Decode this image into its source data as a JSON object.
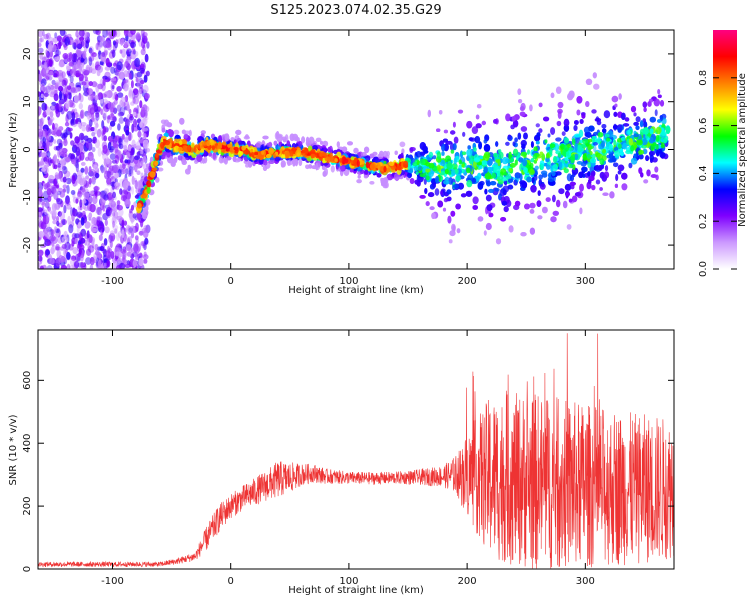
{
  "title": "S125.2023.074.02.35.G29",
  "chart_data": [
    {
      "type": "heatmap",
      "xlabel": "Height of straight line (km)",
      "ylabel": "Frequency (Hz)",
      "xlim": [
        -163,
        375
      ],
      "ylim": [
        -25,
        25
      ],
      "xticks": [
        -100,
        0,
        100,
        200,
        300
      ],
      "yticks": [
        -20,
        -10,
        0,
        10,
        20
      ],
      "colorbar": {
        "label": "Normalized spectral amplitude",
        "range": [
          0,
          1
        ],
        "ticks": [
          "0.0",
          "0.2",
          "0.4",
          "0.6",
          "0.8"
        ],
        "stops": [
          "#ffffff",
          "#cc99ff",
          "#7f00ff",
          "#0000ff",
          "#00ffff",
          "#00ff00",
          "#ffff00",
          "#ff8000",
          "#ff0000",
          "#ff0080"
        ]
      },
      "ridge": {
        "x": [
          -78,
          -72,
          -65,
          -60,
          -55,
          -50,
          -40,
          -30,
          -20,
          -10,
          0,
          10,
          20,
          30,
          40,
          50,
          60,
          70,
          80,
          90,
          100,
          110,
          120,
          130,
          140,
          150,
          160,
          170,
          180,
          190,
          200,
          210,
          220,
          230,
          240,
          250,
          260,
          270,
          280,
          290,
          300,
          310,
          320,
          330,
          340,
          350,
          360,
          370
        ],
        "y": [
          -12,
          -9,
          -4,
          0,
          2,
          1,
          0.5,
          0,
          1,
          0.5,
          0,
          0,
          -1,
          -1,
          -0.5,
          -0.5,
          -0.5,
          -1,
          -1.5,
          -2,
          -2.5,
          -3,
          -3.5,
          -4,
          -3.5,
          -3,
          -3.5,
          -4,
          -4,
          -4,
          -3,
          -3,
          -4,
          -4,
          -3,
          -3,
          -2,
          -2,
          -1.5,
          -1,
          0,
          0,
          1,
          1,
          2,
          2,
          3,
          4
        ]
      },
      "band_halfwidth": {
        "x": [
          -78,
          -60,
          0,
          100,
          150,
          170,
          200,
          250,
          300,
          370
        ],
        "y": [
          2,
          2.5,
          1.5,
          1.5,
          2,
          5,
          7,
          7,
          6,
          5
        ]
      },
      "noise_region_x": [
        -163,
        -70
      ]
    },
    {
      "type": "line",
      "xlabel": "Height of straight line (km)",
      "ylabel": "SNR (10 * v/v)",
      "xlim": [
        -163,
        375
      ],
      "ylim": [
        0,
        760
      ],
      "xticks": [
        -100,
        0,
        100,
        200,
        300
      ],
      "yticks": [
        0,
        200,
        400,
        600
      ],
      "color": "#ee3333",
      "envelope": {
        "x": [
          -163,
          -60,
          -45,
          -30,
          -20,
          -10,
          0,
          10,
          20,
          30,
          40,
          50,
          60,
          70,
          80,
          100,
          120,
          140,
          160,
          180,
          190,
          200,
          220,
          240,
          260,
          280,
          300,
          320,
          340,
          360,
          375
        ],
        "mean": [
          15,
          15,
          25,
          40,
          100,
          160,
          200,
          225,
          245,
          265,
          285,
          290,
          300,
          305,
          295,
          290,
          288,
          290,
          292,
          295,
          300,
          300,
          290,
          285,
          275,
          270,
          265,
          260,
          255,
          255,
          255
        ],
        "spread": [
          8,
          8,
          10,
          15,
          40,
          45,
          40,
          40,
          45,
          50,
          60,
          50,
          35,
          30,
          25,
          20,
          20,
          20,
          25,
          35,
          60,
          120,
          240,
          250,
          260,
          250,
          240,
          230,
          220,
          215,
          200
        ]
      }
    }
  ]
}
